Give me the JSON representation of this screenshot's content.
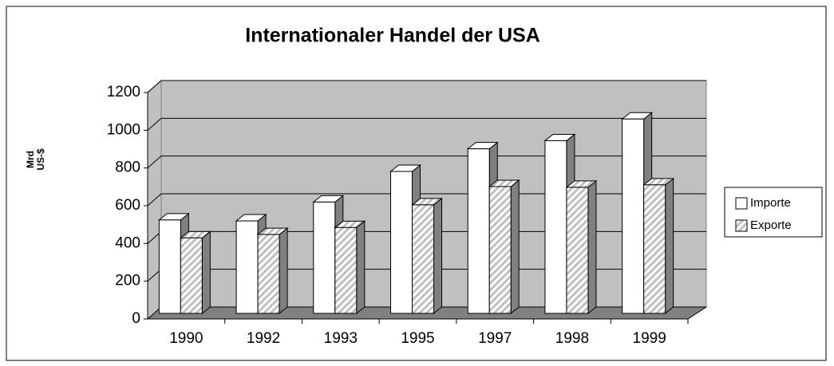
{
  "chart_data": {
    "type": "bar3d",
    "title": "Internationaler Handel der USA",
    "y_label_lines": [
      "Mrd",
      "US-$"
    ],
    "categories": [
      "1990",
      "1992",
      "1993",
      "1995",
      "1997",
      "1998",
      "1999"
    ],
    "series": [
      {
        "name": "Importe",
        "color": "#ffffff",
        "values": [
          495,
          490,
          590,
          752,
          872,
          915,
          1030
        ]
      },
      {
        "name": "Exporte",
        "color": "#c0c0c0",
        "hatch": true,
        "values": [
          400,
          418,
          455,
          575,
          672,
          668,
          681
        ]
      }
    ],
    "ylim": [
      0,
      1200
    ],
    "yticks": [
      0,
      200,
      400,
      600,
      800,
      1000,
      1200
    ],
    "grid": true,
    "legend": "right"
  }
}
